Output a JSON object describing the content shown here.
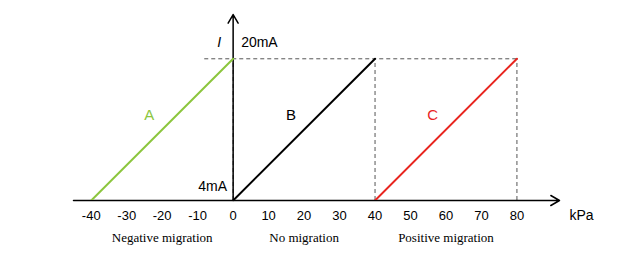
{
  "chart_data": {
    "type": "line",
    "x_label": "kPa",
    "y_label": "I",
    "xlim": [
      -45,
      92
    ],
    "ylim": [
      4,
      25
    ],
    "xticks": [
      -40,
      -30,
      -20,
      -10,
      0,
      10,
      20,
      30,
      40,
      50,
      60,
      70,
      80
    ],
    "yticks": [
      {
        "value": 4,
        "label": "4mA"
      },
      {
        "value": 20,
        "label": "20mA"
      }
    ],
    "series": [
      {
        "name": "A",
        "color": "#8cc63e",
        "x": [
          -40,
          0
        ],
        "values": [
          4,
          20
        ]
      },
      {
        "name": "B",
        "color": "#000000",
        "x": [
          0,
          40
        ],
        "values": [
          4,
          20
        ]
      },
      {
        "name": "C",
        "color": "#e8251f",
        "x": [
          40,
          80
        ],
        "values": [
          4,
          20
        ]
      }
    ],
    "annotations": [
      "Negative migration",
      "No migration",
      "Positive migration"
    ]
  }
}
